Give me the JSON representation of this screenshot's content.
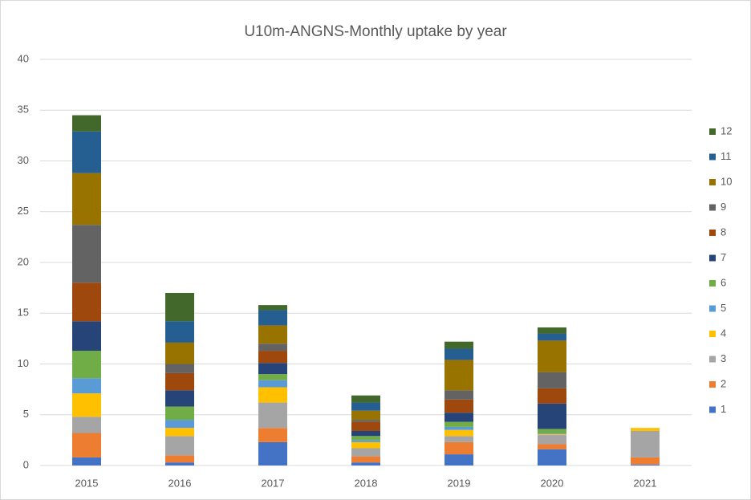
{
  "chart_data": {
    "type": "bar",
    "stacked": true,
    "title": "U10m-ANGNS-Monthly uptake by year",
    "categories": [
      "2015",
      "2016",
      "2017",
      "2018",
      "2019",
      "2020",
      "2021"
    ],
    "ylim": [
      0,
      40
    ],
    "yticks": [
      0,
      5,
      10,
      15,
      20,
      25,
      30,
      35,
      40
    ],
    "grid": true,
    "legend": "right",
    "series": [
      {
        "name": "1",
        "color": "#4472c4",
        "values": [
          0.8,
          0.3,
          2.3,
          0.3,
          1.1,
          1.6,
          0.1
        ]
      },
      {
        "name": "2",
        "color": "#ed7d31",
        "values": [
          2.4,
          0.7,
          1.4,
          0.6,
          1.2,
          0.5,
          0.7
        ]
      },
      {
        "name": "3",
        "color": "#a5a5a5",
        "values": [
          1.6,
          1.9,
          2.5,
          0.8,
          0.6,
          0.9,
          2.6
        ]
      },
      {
        "name": "4",
        "color": "#ffc000",
        "values": [
          2.3,
          0.8,
          1.5,
          0.6,
          0.6,
          0.1,
          0.3
        ]
      },
      {
        "name": "5",
        "color": "#5b9bd5",
        "values": [
          1.5,
          0.8,
          0.7,
          0.2,
          0.3,
          0.1,
          0
        ]
      },
      {
        "name": "6",
        "color": "#70ad47",
        "values": [
          2.7,
          1.3,
          0.6,
          0.4,
          0.5,
          0.4,
          0
        ]
      },
      {
        "name": "7",
        "color": "#264478",
        "values": [
          2.9,
          1.6,
          1.1,
          0.5,
          0.9,
          2.5,
          0
        ]
      },
      {
        "name": "8",
        "color": "#9e480e",
        "values": [
          3.8,
          1.7,
          1.2,
          0.9,
          1.3,
          1.5,
          0
        ]
      },
      {
        "name": "9",
        "color": "#636363",
        "values": [
          5.7,
          0.9,
          0.7,
          0.2,
          0.9,
          1.6,
          0
        ]
      },
      {
        "name": "10",
        "color": "#997300",
        "values": [
          5.1,
          2.1,
          1.8,
          0.9,
          3.0,
          3.1,
          0
        ]
      },
      {
        "name": "11",
        "color": "#255e91",
        "values": [
          4.1,
          2.1,
          1.5,
          0.8,
          1.1,
          0.7,
          0
        ]
      },
      {
        "name": "12",
        "color": "#43682b",
        "values": [
          1.6,
          2.8,
          0.5,
          0.7,
          0.7,
          0.6,
          0
        ]
      }
    ]
  }
}
